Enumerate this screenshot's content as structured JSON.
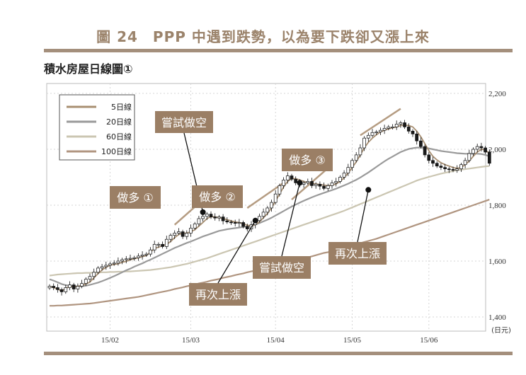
{
  "figure_title": "圖 24　PPP 中遇到跌勢，以為要下跌卻又漲上來",
  "chart_subtitle": "積水房屋日線圖①",
  "colors": {
    "brand": "#a48f7c",
    "label_box": "#9b7f65",
    "candle_up": "#ffffff",
    "candle_down": "#1a1a1a",
    "ma5": "#a88f72",
    "ma20": "#9a9a9a",
    "ma60": "#cbc6b2",
    "ma100": "#b09580",
    "trend_line": "#b59c82"
  },
  "chart_data": {
    "type": "candlestick",
    "title": "積水房屋日線圖①",
    "y_unit": "(日元)",
    "ylim": [
      1400,
      2200
    ],
    "y_ticks": [
      "2,200",
      "2,000",
      "1,800",
      "1,600",
      "1,400"
    ],
    "y_tick_values": [
      2200,
      2000,
      1800,
      1600,
      1400
    ],
    "x_ticks": [
      {
        "label": "15/02",
        "day": 15
      },
      {
        "label": "15/03",
        "day": 35
      },
      {
        "label": "15/04",
        "day": 56
      },
      {
        "label": "15/05",
        "day": 75
      },
      {
        "label": "15/06",
        "day": 94
      }
    ],
    "n_days": 110,
    "legend": {
      "placement": "top-left",
      "items": [
        "5日線",
        "20日線",
        "60日線",
        "100日線"
      ]
    },
    "close": [
      1510,
      1505,
      1498,
      1490,
      1505,
      1515,
      1500,
      1510,
      1520,
      1535,
      1545,
      1560,
      1575,
      1580,
      1585,
      1590,
      1593,
      1600,
      1605,
      1608,
      1610,
      1612,
      1618,
      1622,
      1625,
      1640,
      1660,
      1660,
      1652,
      1678,
      1692,
      1700,
      1705,
      1688,
      1700,
      1718,
      1733,
      1752,
      1760,
      1768,
      1758,
      1754,
      1758,
      1744,
      1740,
      1738,
      1735,
      1738,
      1724,
      1715,
      1730,
      1745,
      1760,
      1775,
      1790,
      1810,
      1840,
      1870,
      1890,
      1905,
      1893,
      1880,
      1875,
      1880,
      1885,
      1870,
      1875,
      1868,
      1860,
      1870,
      1880,
      1885,
      1900,
      1915,
      1935,
      1960,
      1980,
      2005,
      2040,
      2050,
      2060,
      2062,
      2068,
      2075,
      2080,
      2080,
      2090,
      2095,
      2080,
      2065,
      2055,
      2030,
      2010,
      1980,
      1960,
      1950,
      1940,
      1935,
      1930,
      1928,
      1925,
      1930,
      1945,
      1960,
      1985,
      2000,
      2010,
      2005,
      1990,
      1950
    ],
    "series": [
      {
        "name": "5日線",
        "values": [
          1510,
          1505,
          1500,
          1493,
          1502,
          1510,
          1507,
          1510,
          1513,
          1518,
          1525,
          1540,
          1555,
          1568,
          1578,
          1585,
          1588,
          1590,
          1596,
          1599,
          1605,
          1608,
          1612,
          1616,
          1620,
          1632,
          1645,
          1650,
          1655,
          1660,
          1670,
          1684,
          1695,
          1700,
          1700,
          1705,
          1712,
          1725,
          1738,
          1752,
          1759,
          1758,
          1756,
          1752,
          1748,
          1744,
          1740,
          1738,
          1734,
          1728,
          1726,
          1730,
          1740,
          1755,
          1770,
          1790,
          1815,
          1840,
          1865,
          1885,
          1895,
          1895,
          1890,
          1885,
          1880,
          1878,
          1876,
          1874,
          1872,
          1870,
          1872,
          1876,
          1885,
          1898,
          1915,
          1935,
          1955,
          1980,
          2005,
          2025,
          2040,
          2052,
          2062,
          2068,
          2073,
          2077,
          2080,
          2085,
          2086,
          2085,
          2080,
          2065,
          2045,
          2020,
          1995,
          1975,
          1962,
          1952,
          1945,
          1940,
          1935,
          1932,
          1935,
          1945,
          1958,
          1975,
          1990,
          2000,
          1998,
          1985
        ]
      },
      {
        "name": "20日線",
        "values": [
          1535,
          1530,
          1524,
          1518,
          1514,
          1512,
          1510,
          1510,
          1510,
          1512,
          1515,
          1519,
          1523,
          1528,
          1534,
          1540,
          1546,
          1553,
          1560,
          1567,
          1573,
          1580,
          1586,
          1592,
          1599,
          1605,
          1612,
          1619,
          1626,
          1633,
          1640,
          1647,
          1653,
          1659,
          1665,
          1670,
          1676,
          1682,
          1688,
          1693,
          1698,
          1703,
          1708,
          1711,
          1714,
          1716,
          1718,
          1720,
          1722,
          1724,
          1727,
          1731,
          1736,
          1742,
          1748,
          1755,
          1763,
          1771,
          1779,
          1787,
          1795,
          1802,
          1809,
          1816,
          1822,
          1828,
          1834,
          1839,
          1844,
          1849,
          1854,
          1859,
          1865,
          1871,
          1877,
          1884,
          1891,
          1899,
          1908,
          1917,
          1927,
          1937,
          1947,
          1957,
          1966,
          1974,
          1982,
          1990,
          1996,
          2001,
          2004,
          2006,
          2006,
          2005,
          2003,
          2000,
          1997,
          1994,
          1992,
          1990,
          1988,
          1986,
          1985,
          1984,
          1984,
          1984,
          1984,
          1983,
          1980,
          1975
        ]
      },
      {
        "name": "60日線",
        "values": [
          1548,
          1550,
          1552,
          1553,
          1554,
          1555,
          1556,
          1557,
          1557,
          1558,
          1558,
          1559,
          1559,
          1560,
          1560,
          1561,
          1561,
          1562,
          1562,
          1563,
          1563,
          1564,
          1565,
          1566,
          1567,
          1568,
          1570,
          1572,
          1574,
          1576,
          1578,
          1581,
          1584,
          1587,
          1590,
          1594,
          1598,
          1602,
          1606,
          1610,
          1615,
          1620,
          1625,
          1630,
          1635,
          1640,
          1645,
          1650,
          1655,
          1660,
          1665,
          1670,
          1675,
          1680,
          1685,
          1690,
          1695,
          1700,
          1705,
          1710,
          1715,
          1720,
          1725,
          1730,
          1735,
          1740,
          1745,
          1750,
          1755,
          1760,
          1765,
          1770,
          1775,
          1780,
          1786,
          1792,
          1798,
          1804,
          1810,
          1816,
          1822,
          1828,
          1834,
          1840,
          1846,
          1852,
          1858,
          1864,
          1870,
          1876,
          1882,
          1888,
          1893,
          1897,
          1901,
          1905,
          1909,
          1913,
          1916,
          1919,
          1922,
          1925,
          1927,
          1929,
          1931,
          1933,
          1935,
          1937,
          1939,
          1940
        ]
      },
      {
        "name": "100日線",
        "values": [
          1440,
          1440,
          1441,
          1441,
          1442,
          1443,
          1444,
          1445,
          1446,
          1447,
          1448,
          1450,
          1452,
          1454,
          1456,
          1458,
          1460,
          1462,
          1464,
          1466,
          1468,
          1470,
          1472,
          1475,
          1478,
          1481,
          1484,
          1487,
          1490,
          1493,
          1496,
          1500,
          1503,
          1506,
          1510,
          1513,
          1516,
          1520,
          1523,
          1526,
          1530,
          1533,
          1536,
          1540,
          1543,
          1546,
          1550,
          1553,
          1556,
          1560,
          1563,
          1566,
          1570,
          1573,
          1577,
          1580,
          1584,
          1587,
          1591,
          1595,
          1598,
          1602,
          1606,
          1610,
          1613,
          1617,
          1621,
          1625,
          1629,
          1632,
          1636,
          1640,
          1644,
          1648,
          1652,
          1656,
          1660,
          1664,
          1668,
          1672,
          1676,
          1680,
          1685,
          1690,
          1695,
          1700,
          1705,
          1710,
          1715,
          1720,
          1725,
          1730,
          1735,
          1740,
          1745,
          1750,
          1755,
          1760,
          1765,
          1770,
          1775,
          1780,
          1785,
          1790,
          1795,
          1800,
          1805,
          1810,
          1815,
          1820
        ]
      }
    ],
    "trend_lines": [
      {
        "from": [
          31,
          1730
        ],
        "to": [
          40,
          1845
        ]
      },
      {
        "from": [
          49,
          1790
        ],
        "to": [
          58,
          1880
        ]
      },
      {
        "from": [
          60,
          1820
        ],
        "to": [
          70,
          1945
        ]
      },
      {
        "from": [
          77,
          2050
        ],
        "to": [
          87,
          2145
        ]
      }
    ],
    "annotations": [
      {
        "id": "attempt-short",
        "text": "嘗試做空",
        "point": [
          38,
          1775
        ]
      },
      {
        "id": "long-1",
        "text": "做多 ①"
      },
      {
        "id": "long-2",
        "text": "做多 ②"
      },
      {
        "id": "long-3",
        "text": "做多 ③"
      },
      {
        "id": "rise-again-1",
        "text": "再次上漲",
        "point": [
          51,
          1745
        ]
      },
      {
        "id": "attempt-short-2",
        "text": "嘗試做空",
        "point": [
          62,
          1880
        ]
      },
      {
        "id": "rise-again-2",
        "text": "再次上漲",
        "point": [
          79,
          1855
        ]
      }
    ]
  }
}
